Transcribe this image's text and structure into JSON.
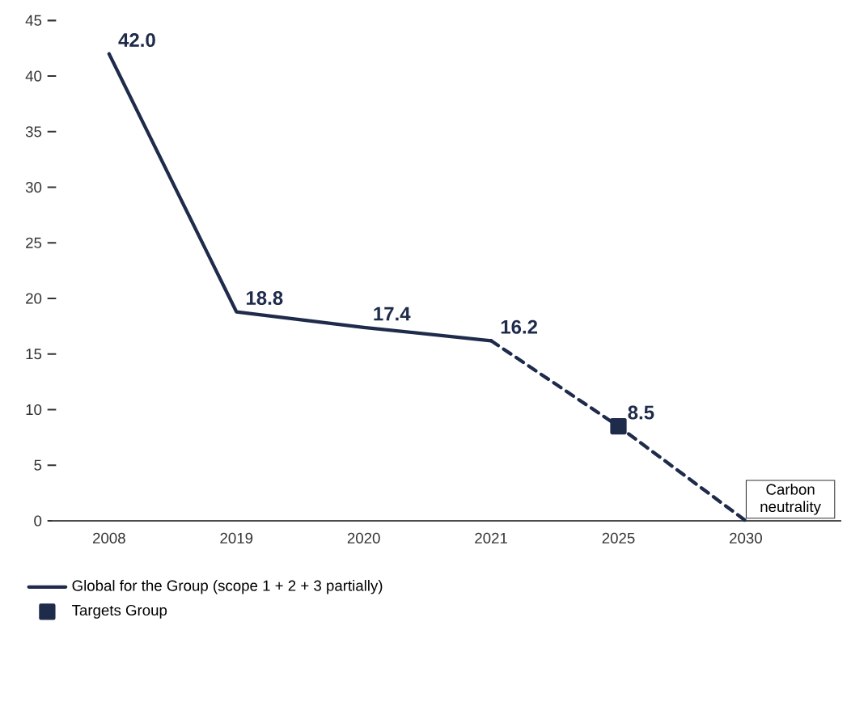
{
  "chart_data": {
    "type": "line",
    "categories": [
      "2008",
      "2019",
      "2020",
      "2021",
      "2025",
      "2030"
    ],
    "series": [
      {
        "name": "Global for the Group (scope 1 + 2 + 3 partially)",
        "color": "#1f2b4a",
        "values": [
          42.0,
          18.8,
          17.4,
          16.2,
          null,
          null
        ],
        "value_labels": [
          "42.0",
          "18.8",
          "17.4",
          "16.2",
          null,
          null
        ],
        "line_style": "solid",
        "marker": "none"
      },
      {
        "color": "#1f2b4a",
        "values": [
          null,
          null,
          null,
          16.2,
          8.5,
          0
        ],
        "line_style": "dashed",
        "marker": "none"
      },
      {
        "name": "Targets Group",
        "type": "scatter",
        "color": "#1f2b4a",
        "values": [
          null,
          null,
          null,
          null,
          8.5,
          null
        ],
        "value_labels": [
          null,
          null,
          null,
          null,
          "8.5",
          null
        ],
        "marker": "square"
      }
    ],
    "annotations": [
      {
        "text": "Carbon neutrality",
        "x": "2030",
        "y": 0
      }
    ],
    "ylim": [
      0,
      45
    ],
    "yticks": [
      0,
      5,
      10,
      15,
      20,
      25,
      30,
      35,
      40,
      45
    ],
    "grid": false,
    "legend": "bottom"
  }
}
